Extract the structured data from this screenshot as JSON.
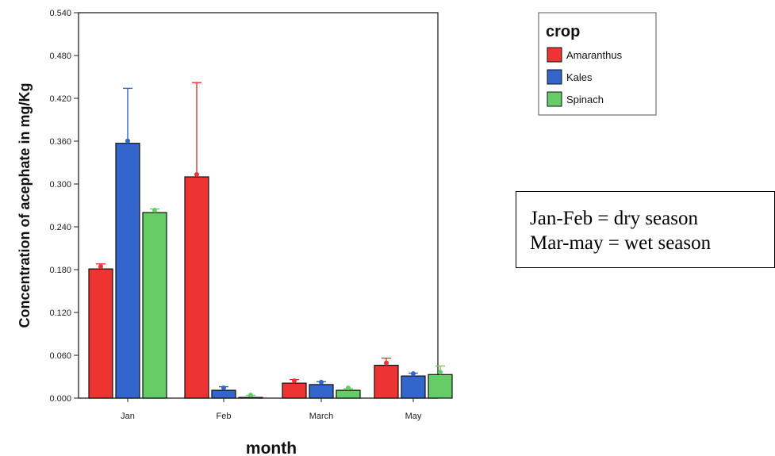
{
  "chart_data": {
    "type": "bar",
    "title": "",
    "xlabel": "month",
    "ylabel": "Concentration of acephate in mg/Kg",
    "ylim": [
      0,
      0.54
    ],
    "yticks": [
      "0.000",
      "0.060",
      "0.120",
      "0.180",
      "0.240",
      "0.300",
      "0.360",
      "0.420",
      "0.480",
      "0.540"
    ],
    "grid": false,
    "legend": {
      "title": "crop",
      "placement": "top-right"
    },
    "categories": [
      "Jan",
      "Feb",
      "March",
      "May"
    ],
    "series": [
      {
        "name": "Amaranthus",
        "color": "#ee3333",
        "values": [
          0.181,
          0.31,
          0.021,
          0.046
        ],
        "error_upper": [
          0.188,
          0.442,
          0.026,
          0.056
        ]
      },
      {
        "name": "Kales",
        "color": "#3366cc",
        "values": [
          0.357,
          0.011,
          0.019,
          0.031
        ],
        "error_upper": [
          0.434,
          0.016,
          0.023,
          0.035
        ]
      },
      {
        "name": "Spinach",
        "color": "#66cc66",
        "values": [
          0.26,
          0.001,
          0.011,
          0.033
        ],
        "error_upper": [
          0.265,
          0.004,
          0.013,
          0.045
        ]
      }
    ]
  },
  "annotation": {
    "line1": "Jan-Feb = dry season",
    "line2": "Mar-may = wet season"
  }
}
